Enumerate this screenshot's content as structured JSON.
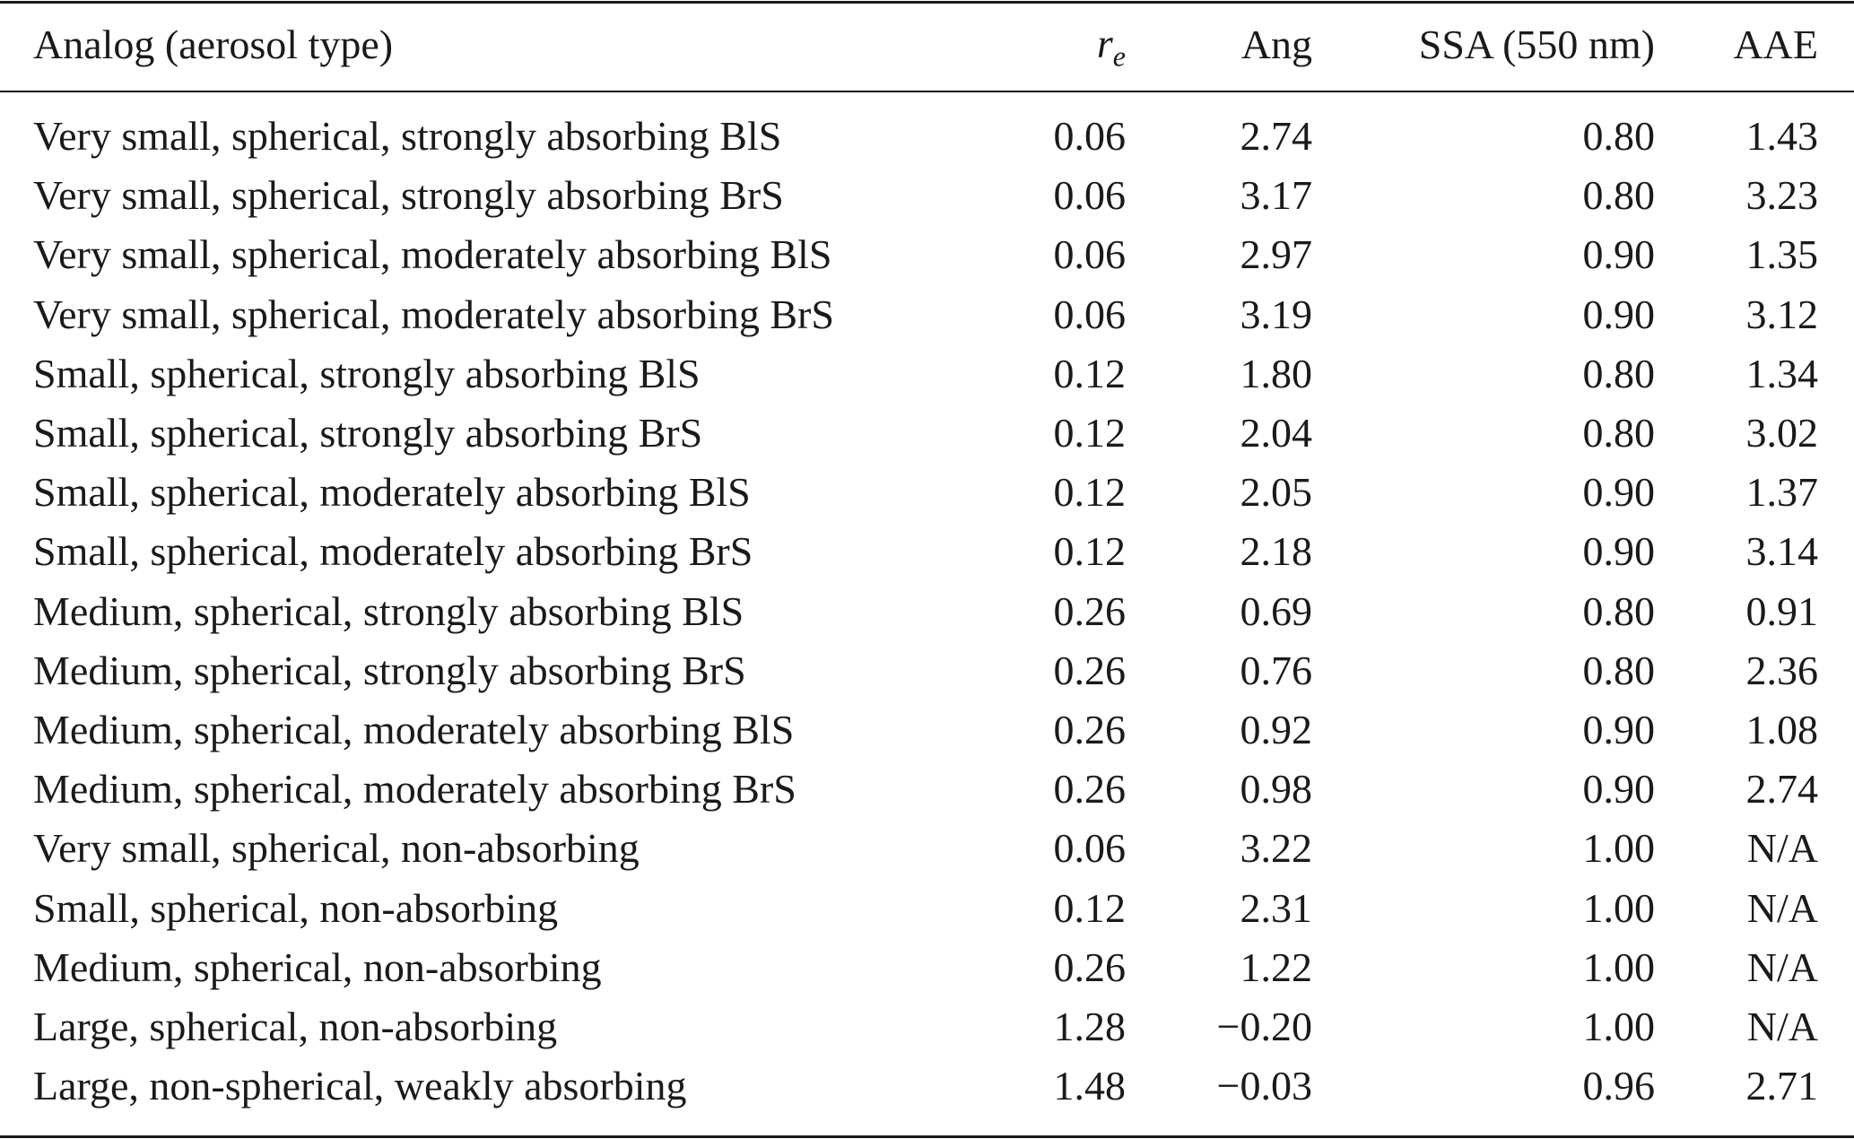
{
  "table": {
    "columns": [
      {
        "label": "Analog (aerosol type)"
      },
      {
        "label": "r",
        "subscript": "e"
      },
      {
        "label": "Ang"
      },
      {
        "label": "SSA (550 nm)"
      },
      {
        "label": "AAE"
      }
    ],
    "rows": [
      [
        "Very small, spherical, strongly absorbing BlS",
        "0.06",
        "2.74",
        "0.80",
        "1.43"
      ],
      [
        "Very small, spherical, strongly absorbing BrS",
        "0.06",
        "3.17",
        "0.80",
        "3.23"
      ],
      [
        "Very small, spherical, moderately absorbing BlS",
        "0.06",
        "2.97",
        "0.90",
        "1.35"
      ],
      [
        "Very small, spherical, moderately absorbing BrS",
        "0.06",
        "3.19",
        "0.90",
        "3.12"
      ],
      [
        "Small, spherical, strongly absorbing BlS",
        "0.12",
        "1.80",
        "0.80",
        "1.34"
      ],
      [
        "Small, spherical, strongly absorbing BrS",
        "0.12",
        "2.04",
        "0.80",
        "3.02"
      ],
      [
        "Small, spherical, moderately absorbing BlS",
        "0.12",
        "2.05",
        "0.90",
        "1.37"
      ],
      [
        "Small, spherical, moderately absorbing BrS",
        "0.12",
        "2.18",
        "0.90",
        "3.14"
      ],
      [
        "Medium, spherical, strongly absorbing BlS",
        "0.26",
        "0.69",
        "0.80",
        "0.91"
      ],
      [
        "Medium, spherical, strongly absorbing BrS",
        "0.26",
        "0.76",
        "0.80",
        "2.36"
      ],
      [
        "Medium, spherical, moderately absorbing BlS",
        "0.26",
        "0.92",
        "0.90",
        "1.08"
      ],
      [
        "Medium, spherical, moderately absorbing BrS",
        "0.26",
        "0.98",
        "0.90",
        "2.74"
      ],
      [
        "Very small, spherical, non-absorbing",
        "0.06",
        "3.22",
        "1.00",
        "N/A"
      ],
      [
        "Small, spherical, non-absorbing",
        "0.12",
        "2.31",
        "1.00",
        "N/A"
      ],
      [
        "Medium, spherical, non-absorbing",
        "0.26",
        "1.22",
        "1.00",
        "N/A"
      ],
      [
        "Large, spherical, non-absorbing",
        "1.28",
        "−0.20",
        "1.00",
        "N/A"
      ],
      [
        "Large, non-spherical, weakly absorbing",
        "1.48",
        "−0.03",
        "0.96",
        "2.71"
      ]
    ]
  }
}
